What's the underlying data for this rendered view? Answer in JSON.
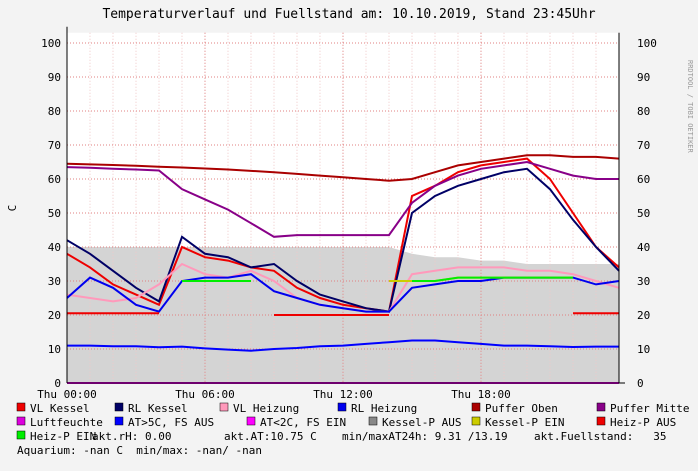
{
  "chart_data": {
    "type": "line",
    "title": "Temperaturverlauf und Fuellstand am: 10.10.2019, Stand 23:45Uhr",
    "y_label": "C",
    "watermark": "RRDTOOL / TOBI OETIKER",
    "x": [
      0,
      1,
      2,
      3,
      4,
      5,
      6,
      7,
      8,
      9,
      10,
      11,
      12,
      13,
      14,
      15,
      16,
      17,
      18,
      19,
      20,
      21,
      22,
      23,
      24
    ],
    "xlim": [
      0,
      24
    ],
    "xticks": [
      {
        "value": 0,
        "label": "Thu 00:00"
      },
      {
        "value": 6,
        "label": "Thu 06:00"
      },
      {
        "value": 12,
        "label": "Thu 12:00"
      },
      {
        "value": 18,
        "label": "Thu 18:00"
      }
    ],
    "ylim": [
      0,
      103
    ],
    "yticks": [
      0,
      10,
      20,
      30,
      40,
      50,
      60,
      70,
      80,
      90,
      100
    ],
    "grid": true,
    "area": {
      "color": "#d4d4d4",
      "values": [
        40,
        40,
        40,
        40,
        40,
        40,
        40,
        40,
        40,
        40,
        40,
        40,
        40,
        40,
        40,
        38,
        37,
        37,
        36,
        36,
        35,
        35,
        35,
        35,
        35
      ]
    },
    "series": [
      {
        "name": "VL Kessel",
        "color": "#ee0000",
        "values": [
          38,
          34,
          29,
          26,
          23,
          40,
          37,
          36,
          34,
          33,
          28,
          25,
          23,
          22,
          21,
          55,
          58,
          62,
          64,
          65,
          66,
          60,
          50,
          40,
          34
        ]
      },
      {
        "name": "RL Kessel",
        "color": "#000066",
        "values": [
          42,
          38,
          33,
          28,
          24,
          43,
          38,
          37,
          34,
          35,
          30,
          26,
          24,
          22,
          21,
          50,
          55,
          58,
          60,
          62,
          63,
          57,
          48,
          40,
          33
        ]
      },
      {
        "name": "VL Heizung",
        "color": "#ff99bb",
        "values": [
          26,
          25,
          24,
          25,
          29,
          35,
          32,
          31,
          33,
          30,
          25,
          23,
          22,
          21,
          21,
          32,
          33,
          34,
          34,
          34,
          33,
          33,
          32,
          30,
          28
        ]
      },
      {
        "name": "RL Heizung",
        "color": "#0000ee",
        "values": [
          25,
          31,
          28,
          23,
          21,
          30,
          31,
          31,
          32,
          27,
          25,
          23,
          22,
          21,
          21,
          28,
          29,
          30,
          30,
          31,
          31,
          31,
          31,
          29,
          30
        ]
      },
      {
        "name": "Puffer Oben",
        "color": "#aa0000",
        "values": [
          64.5,
          64.3,
          64.1,
          63.9,
          63.6,
          63.4,
          63.1,
          62.8,
          62.4,
          62,
          61.5,
          61,
          60.5,
          60,
          59.5,
          60,
          62,
          64,
          65,
          66,
          67,
          67,
          66.5,
          66.5,
          66
        ]
      },
      {
        "name": "Puffer Mitte",
        "color": "#880088",
        "values": [
          63.5,
          63.3,
          63,
          62.8,
          62.5,
          57,
          54,
          51,
          47,
          43,
          43.5,
          43.5,
          43.5,
          43.5,
          43.5,
          53,
          58,
          61,
          63,
          64,
          65,
          63,
          61,
          60,
          60
        ]
      },
      {
        "name": "Luftfeuchte",
        "color": "#dd00dd",
        "values": [
          0,
          0,
          0,
          0,
          0,
          0,
          0,
          0,
          0,
          0,
          0,
          0,
          0,
          0,
          0,
          0,
          0,
          0,
          0,
          0,
          0,
          0,
          0,
          0,
          0
        ]
      },
      {
        "name": "AT>5C, FS AUS",
        "color": "#0000ff",
        "values": [
          11,
          11,
          10.8,
          10.8,
          10.5,
          10.7,
          10.2,
          9.8,
          9.5,
          10,
          10.3,
          10.8,
          11,
          11.5,
          12,
          12.5,
          12.5,
          12,
          11.5,
          11,
          11,
          10.8,
          10.6,
          10.7,
          10.7
        ]
      },
      {
        "name": "AT<2C, FS EIN",
        "color": "#ff00ff",
        "values": [
          null,
          null,
          null,
          null,
          null,
          null,
          null,
          null,
          null,
          null,
          null,
          null,
          null,
          null,
          null,
          null,
          null,
          null,
          null,
          null,
          null,
          null,
          null,
          null,
          null
        ]
      },
      {
        "name": "Kessel-P AUS",
        "color": "#888888",
        "values": [
          null,
          null,
          null,
          null,
          null,
          null,
          null,
          null,
          null,
          20,
          20,
          20,
          20,
          20,
          20,
          null,
          null,
          null,
          null,
          null,
          null,
          null,
          null,
          null,
          null
        ]
      },
      {
        "name": "Kessel-P EIN",
        "color": "#cccc00",
        "values": [
          null,
          null,
          null,
          null,
          null,
          null,
          null,
          null,
          null,
          null,
          null,
          null,
          null,
          null,
          30,
          30,
          30,
          31,
          31,
          31,
          31,
          31,
          31,
          null,
          null
        ]
      },
      {
        "name": "Heiz-P AUS",
        "color": "#ee0000",
        "values": [
          20.5,
          20.5,
          20.5,
          20.5,
          20.5,
          null,
          null,
          null,
          null,
          20,
          20,
          20,
          20,
          20,
          20,
          null,
          null,
          null,
          null,
          null,
          null,
          null,
          20.5,
          20.5,
          20.5
        ]
      },
      {
        "name": "Heiz-P EIN",
        "color": "#00ee00",
        "values": [
          null,
          null,
          null,
          null,
          null,
          30,
          30,
          30,
          30,
          null,
          null,
          null,
          null,
          null,
          null,
          30,
          30,
          31,
          31,
          31,
          31,
          31,
          31,
          null,
          null
        ]
      }
    ],
    "info": [
      "akt.rH: 0.00",
      "akt.AT:10.75 C",
      "min/maxAT24h: 9.31 /13.19",
      "akt.Fuellstand:   35",
      "Aquarium: -nan C  min/max: -nan/ -nan"
    ]
  }
}
